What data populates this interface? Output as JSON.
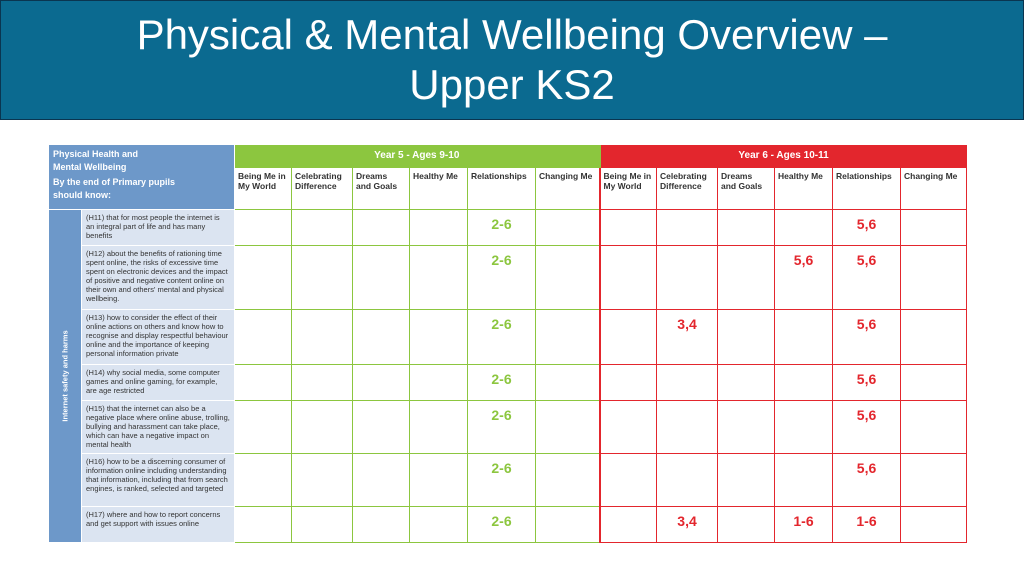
{
  "slide": {
    "title_line1": "Physical & Mental Wellbeing Overview –",
    "title_line2": "Upper KS2"
  },
  "table": {
    "corner": {
      "line1": "Physical Health and",
      "line2": "Mental Wellbeing",
      "line3": "By the end of Primary pupils",
      "line4": "should know:"
    },
    "year5_header": "Year 5 - Ages 9-10",
    "year6_header": "Year 6 - Ages 10-11",
    "puzzles": [
      {
        "line1": "Being Me in",
        "line2": "My World"
      },
      {
        "line1": "Celebrating",
        "line2": "Difference"
      },
      {
        "line1": "Dreams",
        "line2": "and Goals"
      },
      {
        "line1": "Healthy Me",
        "line2": ""
      },
      {
        "line1": "Relationships",
        "line2": ""
      },
      {
        "line1": "Changing Me",
        "line2": ""
      }
    ],
    "strand": "Internet safety and harms",
    "rows": [
      {
        "text": "(H11) that for most people the internet is an integral part of life and has many benefits",
        "y5": [
          "",
          "",
          "",
          "",
          "2-6",
          ""
        ],
        "y6": [
          "",
          "",
          "",
          "",
          "5,6",
          ""
        ]
      },
      {
        "text": "(H12) about the benefits of rationing time spent online, the risks of excessive time spent on electronic devices and the impact of positive and negative content online on their own and others' mental and physical wellbeing.",
        "y5": [
          "",
          "",
          "",
          "",
          "2-6",
          ""
        ],
        "y6": [
          "",
          "",
          "",
          "5,6",
          "5,6",
          ""
        ]
      },
      {
        "text": "(H13) how to consider the effect of their online actions on others and know how to recognise and display respectful behaviour online and the importance of keeping personal information private",
        "y5": [
          "",
          "",
          "",
          "",
          "2-6",
          ""
        ],
        "y6": [
          "",
          "3,4",
          "",
          "",
          "5,6",
          ""
        ]
      },
      {
        "text": "(H14) why social media, some computer games and online gaming, for example, are age restricted",
        "y5": [
          "",
          "",
          "",
          "",
          "2-6",
          ""
        ],
        "y6": [
          "",
          "",
          "",
          "",
          "5,6",
          ""
        ]
      },
      {
        "text": "(H15) that the internet can also be a negative place where online abuse, trolling, bullying and harassment can take place, which can have a negative impact on mental health",
        "y5": [
          "",
          "",
          "",
          "",
          "2-6",
          ""
        ],
        "y6": [
          "",
          "",
          "",
          "",
          "5,6",
          ""
        ]
      },
      {
        "text": "(H16) how to be a discerning consumer of information online including understanding that information, including that from search engines, is ranked, selected and targeted",
        "y5": [
          "",
          "",
          "",
          "",
          "2-6",
          ""
        ],
        "y6": [
          "",
          "",
          "",
          "",
          "5,6",
          ""
        ]
      },
      {
        "text": "(H17) where and how to report concerns and get support with issues online",
        "y5": [
          "",
          "",
          "",
          "",
          "2-6",
          ""
        ],
        "y6": [
          "",
          "3,4",
          "",
          "1-6",
          "1-6",
          ""
        ]
      }
    ]
  },
  "colors": {
    "banner": "#0b6a90",
    "year5": "#8cc63f",
    "year6": "#e3262d",
    "corner": "#6d98c9",
    "description_bg": "#dbe4f1"
  }
}
